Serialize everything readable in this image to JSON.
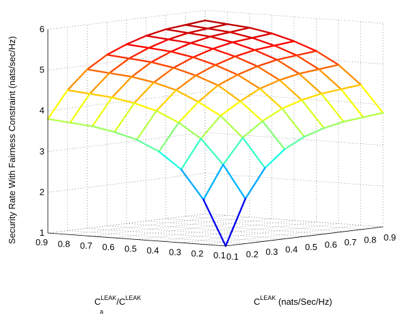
{
  "chart_data": {
    "type": "surface",
    "title": "",
    "zlabel": "Security Rate With Fairness Constraint  (nats/sec/Hz)",
    "xlabel": {
      "c1_main": "C",
      "c1_sup": "LEAK",
      "c1_sub": "a",
      "slash": "/",
      "c2_main": "C",
      "c2_sup": "LEAK"
    },
    "ylabel": {
      "main": "C",
      "sup": "LEAK",
      "units": " (nats/Sec/Hz)"
    },
    "x_ticks": [
      "0.1",
      "0.2",
      "0.3",
      "0.4",
      "0.5",
      "0.6",
      "0.7",
      "0.8",
      "0.9"
    ],
    "y_ticks": [
      "0.1",
      "0.2",
      "0.3",
      "0.4",
      "0.5",
      "0.6",
      "0.7",
      "0.8",
      "0.9"
    ],
    "z_ticks": [
      "1",
      "2",
      "3",
      "4",
      "5",
      "6"
    ],
    "x": [
      0.1,
      0.2,
      0.3,
      0.4,
      0.5,
      0.6,
      0.7,
      0.8,
      0.9
    ],
    "y": [
      0.1,
      0.2,
      0.3,
      0.4,
      0.5,
      0.6,
      0.7,
      0.8,
      0.9
    ],
    "xlim": [
      0.1,
      0.9
    ],
    "ylim": [
      0.1,
      0.9
    ],
    "zlim": [
      1,
      6
    ],
    "grid": true,
    "colormap": "jet",
    "z": [
      [
        1.0,
        2.1,
        2.8,
        3.2,
        3.45,
        3.6,
        3.7,
        3.75,
        3.8
      ],
      [
        2.1,
        2.9,
        3.5,
        3.85,
        4.1,
        4.25,
        4.35,
        4.4,
        4.45
      ],
      [
        2.8,
        3.5,
        4.0,
        4.3,
        4.55,
        4.7,
        4.8,
        4.85,
        4.9
      ],
      [
        3.2,
        3.85,
        4.3,
        4.65,
        4.85,
        5.0,
        5.1,
        5.15,
        5.2
      ],
      [
        3.45,
        4.1,
        4.55,
        4.85,
        5.05,
        5.2,
        5.3,
        5.35,
        5.4
      ],
      [
        3.6,
        4.25,
        4.7,
        5.0,
        5.2,
        5.35,
        5.45,
        5.5,
        5.55
      ],
      [
        3.7,
        4.35,
        4.8,
        5.1,
        5.3,
        5.45,
        5.55,
        5.6,
        5.65
      ],
      [
        3.75,
        4.4,
        4.85,
        5.15,
        5.35,
        5.5,
        5.6,
        5.65,
        5.7
      ],
      [
        3.8,
        4.45,
        4.9,
        5.2,
        5.4,
        5.55,
        5.65,
        5.7,
        5.75
      ]
    ]
  }
}
